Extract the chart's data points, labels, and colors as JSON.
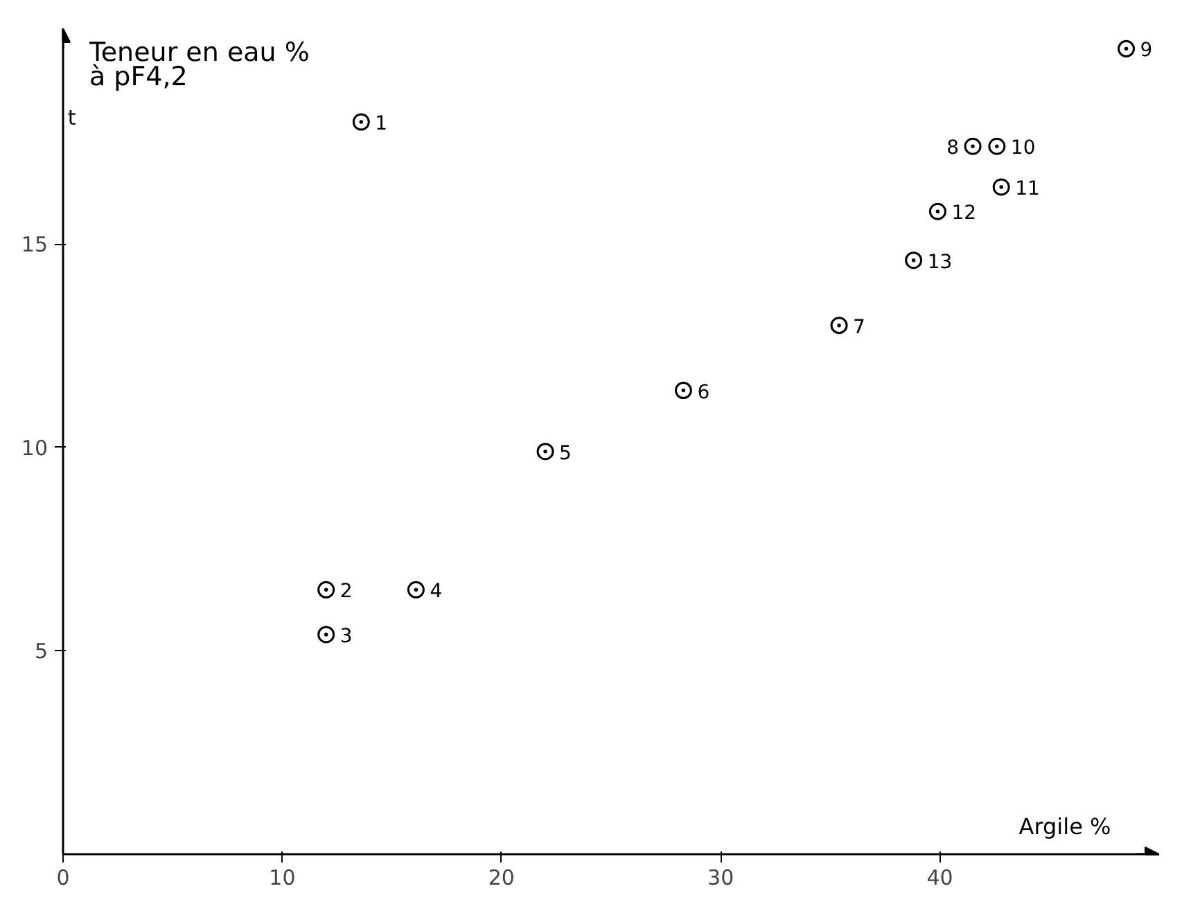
{
  "chart_data": {
    "type": "scatter",
    "ylabel": "Teneur en eau %\nà pF4,2",
    "xlabel": "Argile %",
    "x": [
      13.6,
      12.0,
      12.0,
      16.1,
      22.0,
      28.3,
      35.4,
      41.5,
      48.5,
      42.6,
      42.8,
      39.9,
      38.8
    ],
    "values": [
      18.0,
      6.5,
      5.4,
      6.5,
      9.9,
      11.4,
      13.0,
      17.4,
      19.8,
      17.4,
      16.4,
      15.8,
      14.6
    ],
    "color": "#000000",
    "marker": "circle",
    "grid": false,
    "xlim": [
      0,
      50
    ],
    "ylim": [
      0,
      20.3
    ],
    "xticks": [
      0,
      10,
      20,
      30,
      40
    ],
    "yticks": [
      5,
      10,
      15
    ],
    "annotations": [
      "t",
      {
        "text": "1",
        "x": 13.6,
        "y": 18.0
      },
      {
        "text": "2",
        "x": 12.0,
        "y": 6.5
      },
      {
        "text": "3",
        "x": 12.0,
        "y": 5.4
      },
      {
        "text": "4",
        "x": 16.1,
        "y": 6.5
      },
      {
        "text": "5",
        "x": 22.0,
        "y": 9.9
      },
      {
        "text": "6",
        "x": 28.3,
        "y": 11.4
      },
      {
        "text": "7",
        "x": 35.4,
        "y": 13.0
      },
      {
        "text": "8",
        "x": 41.5,
        "y": 17.4
      },
      {
        "text": "9",
        "x": 48.5,
        "y": 19.8
      },
      {
        "text": "10",
        "x": 42.6,
        "y": 17.4
      },
      {
        "text": "11",
        "x": 42.8,
        "y": 16.4
      },
      {
        "text": "12",
        "x": 39.9,
        "y": 15.8
      },
      {
        "text": "13",
        "x": 38.8,
        "y": 14.6
      }
    ]
  }
}
